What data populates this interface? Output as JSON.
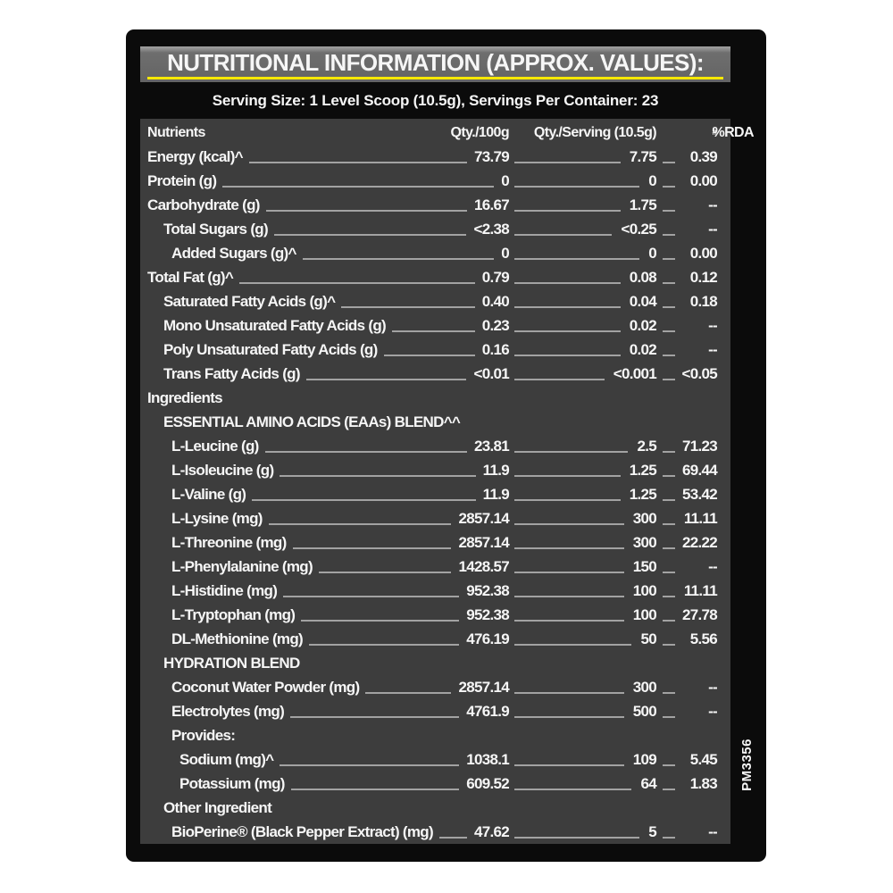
{
  "label": {
    "title": "NUTRITIONAL INFORMATION (APPROX. VALUES):",
    "serving_line": "Serving Size: 1 Level Scoop (10.5g), Servings Per Container: 23",
    "side_code": "PM3356"
  },
  "colors": {
    "page": "#ffffff",
    "panel": "#0b0b0b",
    "table": "#3d3d3d",
    "yellow": "#f6e800",
    "leader": "#a2a2a2",
    "text": "#f6f6f6"
  },
  "table": {
    "headers": {
      "nutrients": "Nutrients",
      "qty100": "Qty./100g",
      "qtyserving": "Qty./Serving (10.5g)",
      "rda": "%RDA",
      "rda_sup": "#"
    },
    "rows": [
      {
        "label": "Energy (kcal)^",
        "indent": 0,
        "q100": "73.79",
        "qserv": "7.75",
        "rda": "0.39"
      },
      {
        "label": "Protein (g)",
        "indent": 0,
        "q100": "0",
        "qserv": "0",
        "rda": "0.00"
      },
      {
        "label": "Carbohydrate (g)",
        "indent": 0,
        "q100": "16.67",
        "qserv": "1.75",
        "rda": "--"
      },
      {
        "label": "Total Sugars (g)",
        "indent": 1,
        "q100": "<2.38",
        "qserv": "<0.25",
        "rda": "--"
      },
      {
        "label": "Added Sugars (g)^",
        "indent": 2,
        "q100": "0",
        "qserv": "0",
        "rda": "0.00"
      },
      {
        "label": "Total Fat (g)^",
        "indent": 0,
        "q100": "0.79",
        "qserv": "0.08",
        "rda": "0.12"
      },
      {
        "label": "Saturated Fatty Acids (g)^",
        "indent": 1,
        "q100": "0.40",
        "qserv": "0.04",
        "rda": "0.18"
      },
      {
        "label": "Mono Unsaturated Fatty Acids (g)",
        "indent": 1,
        "q100": "0.23",
        "qserv": "0.02",
        "rda": "--"
      },
      {
        "label": "Poly Unsaturated Fatty Acids (g)",
        "indent": 1,
        "q100": "0.16",
        "qserv": "0.02",
        "rda": "--"
      },
      {
        "label": "Trans Fatty Acids (g)",
        "indent": 1,
        "q100": "<0.01",
        "qserv": "<0.001",
        "rda": "<0.05"
      },
      {
        "label": "Ingredients",
        "indent": 0,
        "section": true
      },
      {
        "label": "ESSENTIAL AMINO ACIDS (EAAs) BLEND^^",
        "indent": 1,
        "section": true
      },
      {
        "label": "L-Leucine (g)",
        "indent": 2,
        "q100": "23.81",
        "qserv": "2.5",
        "rda": "71.23"
      },
      {
        "label": "L-Isoleucine (g)",
        "indent": 2,
        "q100": "11.9",
        "qserv": "1.25",
        "rda": "69.44"
      },
      {
        "label": "L-Valine (g)",
        "indent": 2,
        "q100": "11.9",
        "qserv": "1.25",
        "rda": "53.42"
      },
      {
        "label": "L-Lysine (mg)",
        "indent": 2,
        "q100": "2857.14",
        "qserv": "300",
        "rda": "11.11"
      },
      {
        "label": "L-Threonine (mg)",
        "indent": 2,
        "q100": "2857.14",
        "qserv": "300",
        "rda": "22.22"
      },
      {
        "label": "L-Phenylalanine (mg)",
        "indent": 2,
        "q100": "1428.57",
        "qserv": "150",
        "rda": "--"
      },
      {
        "label": "L-Histidine (mg)",
        "indent": 2,
        "q100": "952.38",
        "qserv": "100",
        "rda": "11.11"
      },
      {
        "label": "L-Tryptophan (mg)",
        "indent": 2,
        "q100": "952.38",
        "qserv": "100",
        "rda": "27.78"
      },
      {
        "label": "DL-Methionine (mg)",
        "indent": 2,
        "q100": "476.19",
        "qserv": "50",
        "rda": "5.56"
      },
      {
        "label": "HYDRATION BLEND",
        "indent": 1,
        "section": true
      },
      {
        "label": "Coconut Water Powder (mg)",
        "indent": 2,
        "q100": "2857.14",
        "qserv": "300",
        "rda": "--"
      },
      {
        "label": "Electrolytes (mg)",
        "indent": 2,
        "q100": "4761.9",
        "qserv": "500",
        "rda": "--"
      },
      {
        "label": "Provides:",
        "indent": 2,
        "section": true
      },
      {
        "label": "Sodium (mg)^",
        "indent": 3,
        "q100": "1038.1",
        "qserv": "109",
        "rda": "5.45"
      },
      {
        "label": "Potassium (mg)",
        "indent": 3,
        "q100": "609.52",
        "qserv": "64",
        "rda": "1.83"
      },
      {
        "label": "Other Ingredient",
        "indent": 1,
        "section": true
      },
      {
        "label": "BioPerine® (Black Pepper Extract) (mg)",
        "indent": 2,
        "q100": "47.62",
        "qserv": "5",
        "rda": "--"
      }
    ]
  }
}
